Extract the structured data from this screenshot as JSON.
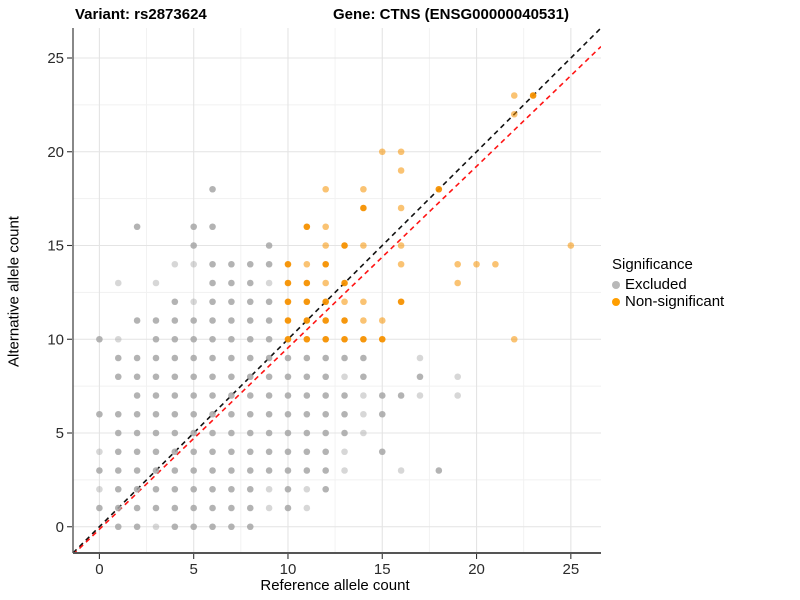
{
  "header": {
    "variant_title": "Variant: rs2873624",
    "gene_title": "Gene: CTNS (ENSG00000040531)"
  },
  "legend": {
    "title": "Significance",
    "items": [
      {
        "label": "Excluded",
        "color": "#b8b8b8"
      },
      {
        "label": "Non-significant",
        "color": "#ff9e00"
      }
    ]
  },
  "style": {
    "grid_major": "#e4e4e4",
    "grid_minor": "#f1f1f1",
    "axis_line": "#555555",
    "tick_color": "#333333",
    "tick_label_color": "#2b2b2b"
  },
  "chart_data": {
    "type": "scatter",
    "title": "Variant: rs2873624  /  Gene: CTNS (ENSG00000040531)",
    "xlabel": "Reference allele count",
    "ylabel": "Alternative allele count",
    "xlim": [
      -1.4,
      26.6
    ],
    "ylim": [
      -1.4,
      26.6
    ],
    "x_ticks": [
      0,
      5,
      10,
      15,
      20,
      25
    ],
    "y_ticks": [
      0,
      5,
      10,
      15,
      20,
      25
    ],
    "minor_ticks": [
      2.5,
      7.5,
      12.5,
      17.5,
      22.5
    ],
    "grid": "on",
    "legend_position": "right",
    "point_note": "points are [ref_count, alt_count, light_flag(optional)]",
    "series": [
      {
        "name": "Excluded",
        "color": "#a6a6a6",
        "opacity": 0.85,
        "light_opacity": 0.45,
        "points": [
          [
            1,
            0
          ],
          [
            2,
            0
          ],
          [
            3,
            0,
            1
          ],
          [
            4,
            0
          ],
          [
            5,
            0
          ],
          [
            6,
            0
          ],
          [
            7,
            0
          ],
          [
            8,
            0
          ],
          [
            0,
            1
          ],
          [
            1,
            1
          ],
          [
            2,
            1
          ],
          [
            3,
            1
          ],
          [
            4,
            1
          ],
          [
            5,
            1
          ],
          [
            6,
            1
          ],
          [
            7,
            1
          ],
          [
            8,
            1
          ],
          [
            9,
            1,
            1
          ],
          [
            10,
            1
          ],
          [
            11,
            1,
            1
          ],
          [
            0,
            2,
            1
          ],
          [
            1,
            2
          ],
          [
            2,
            2
          ],
          [
            3,
            2
          ],
          [
            4,
            2
          ],
          [
            5,
            2
          ],
          [
            6,
            2
          ],
          [
            7,
            2
          ],
          [
            8,
            2
          ],
          [
            9,
            2,
            1
          ],
          [
            10,
            2
          ],
          [
            11,
            2,
            1
          ],
          [
            12,
            2
          ],
          [
            0,
            3
          ],
          [
            1,
            3
          ],
          [
            2,
            3
          ],
          [
            3,
            3
          ],
          [
            4,
            3
          ],
          [
            5,
            3
          ],
          [
            6,
            3
          ],
          [
            7,
            3
          ],
          [
            8,
            3
          ],
          [
            9,
            3
          ],
          [
            10,
            3
          ],
          [
            11,
            3
          ],
          [
            12,
            3
          ],
          [
            13,
            3,
            1
          ],
          [
            16,
            3,
            1
          ],
          [
            18,
            3
          ],
          [
            0,
            4,
            1
          ],
          [
            1,
            4
          ],
          [
            2,
            4
          ],
          [
            3,
            4
          ],
          [
            4,
            4
          ],
          [
            5,
            4
          ],
          [
            6,
            4
          ],
          [
            7,
            4
          ],
          [
            8,
            4
          ],
          [
            9,
            4
          ],
          [
            10,
            4
          ],
          [
            11,
            4
          ],
          [
            12,
            4
          ],
          [
            13,
            4,
            1
          ],
          [
            15,
            4
          ],
          [
            1,
            5
          ],
          [
            2,
            5
          ],
          [
            3,
            5
          ],
          [
            4,
            5
          ],
          [
            5,
            5
          ],
          [
            6,
            5
          ],
          [
            7,
            5
          ],
          [
            8,
            5
          ],
          [
            9,
            5
          ],
          [
            10,
            5
          ],
          [
            11,
            5
          ],
          [
            12,
            5
          ],
          [
            13,
            5
          ],
          [
            14,
            5,
            1
          ],
          [
            0,
            6
          ],
          [
            1,
            6
          ],
          [
            2,
            6
          ],
          [
            3,
            6
          ],
          [
            4,
            6
          ],
          [
            5,
            6
          ],
          [
            6,
            6
          ],
          [
            7,
            6
          ],
          [
            8,
            6
          ],
          [
            9,
            6
          ],
          [
            10,
            6
          ],
          [
            11,
            6
          ],
          [
            12,
            6
          ],
          [
            13,
            6
          ],
          [
            14,
            6,
            1
          ],
          [
            15,
            6
          ],
          [
            2,
            7
          ],
          [
            3,
            7
          ],
          [
            4,
            7
          ],
          [
            5,
            7
          ],
          [
            6,
            7
          ],
          [
            7,
            7
          ],
          [
            8,
            7
          ],
          [
            9,
            7
          ],
          [
            10,
            7
          ],
          [
            11,
            7
          ],
          [
            12,
            7
          ],
          [
            13,
            7
          ],
          [
            14,
            7,
            1
          ],
          [
            15,
            7
          ],
          [
            16,
            7
          ],
          [
            17,
            7,
            1
          ],
          [
            19,
            7,
            1
          ],
          [
            1,
            8
          ],
          [
            2,
            8
          ],
          [
            3,
            8
          ],
          [
            4,
            8
          ],
          [
            5,
            8
          ],
          [
            6,
            8
          ],
          [
            7,
            8
          ],
          [
            8,
            8
          ],
          [
            9,
            8
          ],
          [
            10,
            8
          ],
          [
            11,
            8
          ],
          [
            12,
            8
          ],
          [
            13,
            8,
            1
          ],
          [
            14,
            8
          ],
          [
            17,
            8
          ],
          [
            19,
            8,
            1
          ],
          [
            1,
            9
          ],
          [
            2,
            9
          ],
          [
            3,
            9
          ],
          [
            4,
            9
          ],
          [
            5,
            9
          ],
          [
            6,
            9
          ],
          [
            7,
            9
          ],
          [
            8,
            9
          ],
          [
            9,
            9
          ],
          [
            10,
            9
          ],
          [
            11,
            9
          ],
          [
            12,
            9
          ],
          [
            13,
            9
          ],
          [
            14,
            9
          ],
          [
            17,
            9,
            1
          ],
          [
            0,
            10
          ],
          [
            1,
            10,
            1
          ],
          [
            3,
            10
          ],
          [
            4,
            10
          ],
          [
            5,
            10
          ],
          [
            6,
            10
          ],
          [
            7,
            10
          ],
          [
            8,
            10
          ],
          [
            9,
            10
          ],
          [
            2,
            11
          ],
          [
            3,
            11
          ],
          [
            4,
            11
          ],
          [
            5,
            11
          ],
          [
            6,
            11
          ],
          [
            7,
            11
          ],
          [
            8,
            11
          ],
          [
            9,
            11
          ],
          [
            4,
            12
          ],
          [
            5,
            12,
            1
          ],
          [
            6,
            12
          ],
          [
            7,
            12
          ],
          [
            8,
            12
          ],
          [
            9,
            12
          ],
          [
            1,
            13,
            1
          ],
          [
            3,
            13,
            1
          ],
          [
            6,
            13
          ],
          [
            7,
            13
          ],
          [
            8,
            13
          ],
          [
            9,
            13,
            1
          ],
          [
            4,
            14,
            1
          ],
          [
            5,
            14,
            1
          ],
          [
            6,
            14
          ],
          [
            7,
            14
          ],
          [
            8,
            14
          ],
          [
            9,
            14
          ],
          [
            5,
            15
          ],
          [
            9,
            15
          ],
          [
            2,
            16
          ],
          [
            5,
            16
          ],
          [
            6,
            16
          ],
          [
            6,
            18
          ]
        ]
      },
      {
        "name": "Non-significant",
        "color": "#f69100",
        "opacity": 0.95,
        "light_opacity": 0.55,
        "points": [
          [
            10,
            10
          ],
          [
            11,
            10
          ],
          [
            12,
            10
          ],
          [
            13,
            10
          ],
          [
            14,
            10
          ],
          [
            15,
            10
          ],
          [
            22,
            10,
            1
          ],
          [
            10,
            11
          ],
          [
            11,
            11
          ],
          [
            12,
            11
          ],
          [
            13,
            11
          ],
          [
            14,
            11,
            1
          ],
          [
            15,
            11,
            1
          ],
          [
            10,
            12
          ],
          [
            11,
            12
          ],
          [
            12,
            12
          ],
          [
            13,
            12,
            1
          ],
          [
            14,
            12,
            1
          ],
          [
            16,
            12
          ],
          [
            10,
            13
          ],
          [
            11,
            13
          ],
          [
            12,
            13,
            1
          ],
          [
            13,
            13
          ],
          [
            19,
            13,
            1
          ],
          [
            10,
            14
          ],
          [
            11,
            14,
            1
          ],
          [
            12,
            14
          ],
          [
            16,
            14,
            1
          ],
          [
            19,
            14,
            1
          ],
          [
            20,
            14,
            1
          ],
          [
            21,
            14,
            1
          ],
          [
            12,
            15,
            1
          ],
          [
            13,
            15
          ],
          [
            14,
            15,
            1
          ],
          [
            16,
            15,
            1
          ],
          [
            25,
            15,
            1
          ],
          [
            11,
            16
          ],
          [
            12,
            16,
            1
          ],
          [
            14,
            17
          ],
          [
            16,
            17,
            1
          ],
          [
            12,
            18,
            1
          ],
          [
            14,
            18,
            1
          ],
          [
            18,
            18
          ],
          [
            16,
            19,
            1
          ],
          [
            15,
            20,
            1
          ],
          [
            16,
            20,
            1
          ],
          [
            22,
            22,
            1
          ],
          [
            22,
            23,
            1
          ],
          [
            23,
            23
          ]
        ]
      }
    ],
    "lines": [
      {
        "name": "identity-line",
        "color": "#111111",
        "dash": "5 4",
        "from": [
          -1.4,
          -1.4
        ],
        "to": [
          26.6,
          26.6
        ]
      },
      {
        "name": "fit-line",
        "color": "#ff1414",
        "dash": "5 4",
        "from": [
          -1.4,
          -1.49
        ],
        "to": [
          26.6,
          25.61
        ]
      }
    ]
  }
}
